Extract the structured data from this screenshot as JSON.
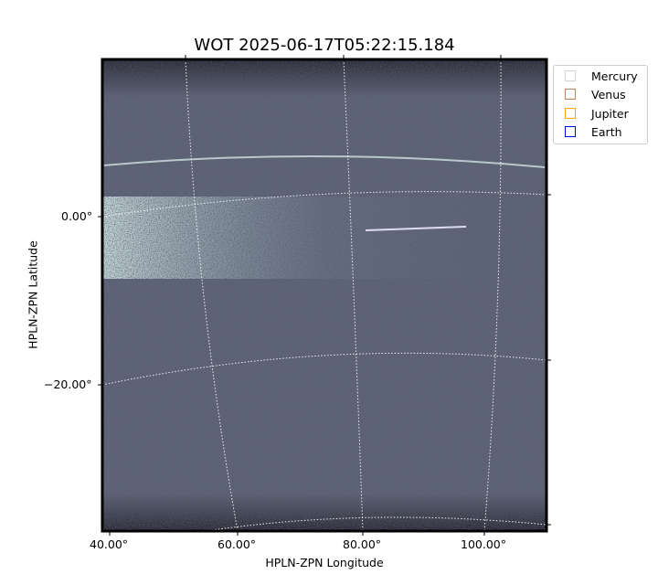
{
  "chart_data": {
    "type": "heatmap",
    "title": "WOT 2025-06-17T05:22:15.184",
    "xlabel": "HPLN-ZPN Longitude",
    "ylabel": "HPLN-ZPN Latitude",
    "x_ticks": [
      "40.00°",
      "60.00°",
      "80.00°",
      "100.00°"
    ],
    "y_ticks": [
      "0.00°",
      "−20.00°"
    ],
    "grid": true,
    "colormap": "bone",
    "legend_position": "outside-top-right",
    "legend": [
      {
        "name": "Mercury",
        "color": "#d3d3d3"
      },
      {
        "name": "Venus",
        "color": "#c8814f"
      },
      {
        "name": "Jupiter",
        "color": "#ffa500"
      },
      {
        "name": "Earth",
        "color": "#0000ff"
      }
    ]
  }
}
